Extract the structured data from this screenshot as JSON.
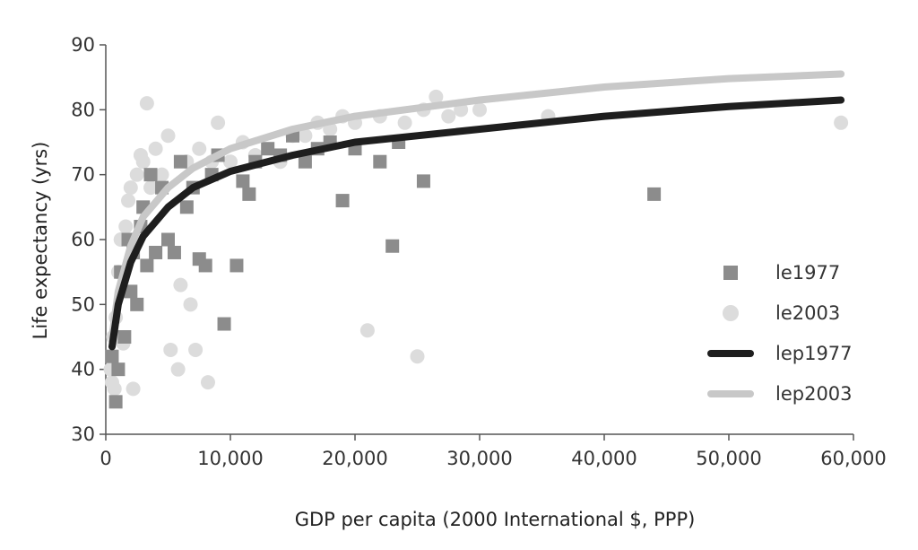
{
  "chart_data": {
    "type": "scatter",
    "title": "",
    "xlabel": "GDP per capita (2000 International $, PPP)",
    "ylabel": "Life expectancy (yrs)",
    "xlim": [
      0,
      60000
    ],
    "ylim": [
      30,
      90
    ],
    "x_ticks": [
      0,
      10000,
      20000,
      30000,
      40000,
      50000,
      60000
    ],
    "x_tick_labels": [
      "0",
      "10,000",
      "20,000",
      "30,000",
      "40,000",
      "50,000",
      "60,000"
    ],
    "y_ticks": [
      30,
      40,
      50,
      60,
      70,
      80,
      90
    ],
    "y_tick_labels": [
      "30",
      "40",
      "50",
      "60",
      "70",
      "80",
      "90"
    ],
    "grid": false,
    "legend": {
      "position": "right",
      "entries": [
        "le1977",
        "le2003",
        "lep1977",
        "lep2003"
      ]
    },
    "series": [
      {
        "name": "le1977",
        "kind": "scatter",
        "marker": "square",
        "color": "#8c8c8c",
        "points": [
          [
            500,
            42
          ],
          [
            800,
            35
          ],
          [
            1000,
            40
          ],
          [
            1200,
            55
          ],
          [
            1500,
            45
          ],
          [
            1800,
            60
          ],
          [
            2000,
            52
          ],
          [
            2200,
            58
          ],
          [
            2500,
            50
          ],
          [
            2800,
            62
          ],
          [
            3000,
            65
          ],
          [
            3300,
            56
          ],
          [
            3600,
            70
          ],
          [
            4000,
            58
          ],
          [
            4500,
            68
          ],
          [
            5000,
            60
          ],
          [
            5500,
            58
          ],
          [
            6000,
            72
          ],
          [
            6500,
            65
          ],
          [
            7000,
            68
          ],
          [
            7500,
            57
          ],
          [
            8000,
            56
          ],
          [
            8500,
            70
          ],
          [
            9000,
            73
          ],
          [
            9500,
            47
          ],
          [
            10500,
            56
          ],
          [
            11000,
            69
          ],
          [
            11500,
            67
          ],
          [
            12000,
            72
          ],
          [
            13000,
            74
          ],
          [
            14000,
            73
          ],
          [
            15000,
            76
          ],
          [
            16000,
            72
          ],
          [
            17000,
            74
          ],
          [
            18000,
            75
          ],
          [
            19000,
            66
          ],
          [
            20000,
            74
          ],
          [
            22000,
            72
          ],
          [
            23000,
            59
          ],
          [
            23500,
            75
          ],
          [
            25500,
            69
          ],
          [
            44000,
            67
          ]
        ]
      },
      {
        "name": "le2003",
        "kind": "scatter",
        "marker": "circle",
        "color": "#dcdcdc",
        "points": [
          [
            400,
            40
          ],
          [
            500,
            38
          ],
          [
            600,
            45
          ],
          [
            700,
            37
          ],
          [
            800,
            48
          ],
          [
            1000,
            55
          ],
          [
            1200,
            60
          ],
          [
            1400,
            44
          ],
          [
            1600,
            62
          ],
          [
            1800,
            66
          ],
          [
            2000,
            68
          ],
          [
            2200,
            37
          ],
          [
            2500,
            70
          ],
          [
            2800,
            73
          ],
          [
            3000,
            72
          ],
          [
            3300,
            81
          ],
          [
            3600,
            68
          ],
          [
            4000,
            74
          ],
          [
            4500,
            70
          ],
          [
            5000,
            76
          ],
          [
            5200,
            43
          ],
          [
            5800,
            40
          ],
          [
            6000,
            53
          ],
          [
            6500,
            72
          ],
          [
            6800,
            50
          ],
          [
            7200,
            43
          ],
          [
            7500,
            74
          ],
          [
            8200,
            38
          ],
          [
            8500,
            72
          ],
          [
            9000,
            78
          ],
          [
            10000,
            72
          ],
          [
            11000,
            75
          ],
          [
            12000,
            73
          ],
          [
            14000,
            72
          ],
          [
            15000,
            76
          ],
          [
            16000,
            76
          ],
          [
            17000,
            78
          ],
          [
            18000,
            77
          ],
          [
            19000,
            79
          ],
          [
            20000,
            78
          ],
          [
            21000,
            46
          ],
          [
            22000,
            79
          ],
          [
            24000,
            78
          ],
          [
            25000,
            42
          ],
          [
            25500,
            80
          ],
          [
            26500,
            82
          ],
          [
            27500,
            79
          ],
          [
            28500,
            80
          ],
          [
            30000,
            80
          ],
          [
            35500,
            79
          ],
          [
            59000,
            78
          ]
        ]
      },
      {
        "name": "lep1977",
        "kind": "line",
        "color": "#1e1e1e",
        "points": [
          [
            500,
            43.5
          ],
          [
            1000,
            50
          ],
          [
            2000,
            56.5
          ],
          [
            3000,
            60.5
          ],
          [
            5000,
            65
          ],
          [
            7000,
            68
          ],
          [
            10000,
            70.5
          ],
          [
            15000,
            73
          ],
          [
            20000,
            75
          ],
          [
            30000,
            77
          ],
          [
            40000,
            79
          ],
          [
            50000,
            80.5
          ],
          [
            59000,
            81.5
          ]
        ]
      },
      {
        "name": "lep2003",
        "kind": "line",
        "color": "#c8c8c8",
        "points": [
          [
            500,
            45
          ],
          [
            1000,
            52
          ],
          [
            2000,
            59
          ],
          [
            3000,
            63.5
          ],
          [
            5000,
            68
          ],
          [
            7000,
            71
          ],
          [
            10000,
            74
          ],
          [
            15000,
            77
          ],
          [
            20000,
            79
          ],
          [
            30000,
            81.5
          ],
          [
            40000,
            83.5
          ],
          [
            50000,
            84.8
          ],
          [
            59000,
            85.5
          ]
        ]
      }
    ]
  }
}
